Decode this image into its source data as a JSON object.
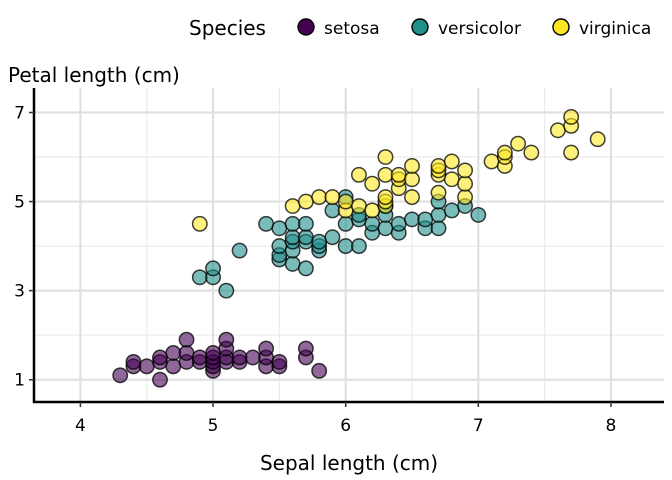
{
  "chart_data": {
    "type": "scatter",
    "xlabel": "Sepal length (cm)",
    "ylabel": "Petal length (cm)",
    "xlim": [
      3.65,
      8.4
    ],
    "ylim": [
      0.5,
      7.55
    ],
    "xticks": [
      4,
      5,
      6,
      7,
      8
    ],
    "yticks": [
      1,
      3,
      5,
      7
    ],
    "grid": true,
    "legend": {
      "title": "Species",
      "position": "top"
    },
    "series": [
      {
        "name": "setosa",
        "color": "#440154",
        "points": [
          [
            4.3,
            1.1
          ],
          [
            4.4,
            1.3
          ],
          [
            4.4,
            1.4
          ],
          [
            4.5,
            1.3
          ],
          [
            4.6,
            1.0
          ],
          [
            4.6,
            1.4
          ],
          [
            4.6,
            1.5
          ],
          [
            4.7,
            1.3
          ],
          [
            4.7,
            1.6
          ],
          [
            4.8,
            1.4
          ],
          [
            4.8,
            1.6
          ],
          [
            4.8,
            1.9
          ],
          [
            4.9,
            1.4
          ],
          [
            4.9,
            1.5
          ],
          [
            5.0,
            1.2
          ],
          [
            5.0,
            1.3
          ],
          [
            5.0,
            1.4
          ],
          [
            5.0,
            1.5
          ],
          [
            5.0,
            1.6
          ],
          [
            5.1,
            1.4
          ],
          [
            5.1,
            1.5
          ],
          [
            5.1,
            1.7
          ],
          [
            5.1,
            1.9
          ],
          [
            5.2,
            1.4
          ],
          [
            5.2,
            1.5
          ],
          [
            5.3,
            1.5
          ],
          [
            5.4,
            1.3
          ],
          [
            5.4,
            1.5
          ],
          [
            5.4,
            1.7
          ],
          [
            5.5,
            1.3
          ],
          [
            5.5,
            1.4
          ],
          [
            5.7,
            1.5
          ],
          [
            5.7,
            1.7
          ],
          [
            5.8,
            1.2
          ]
        ]
      },
      {
        "name": "versicolor",
        "color": "#21908C",
        "points": [
          [
            4.9,
            3.3
          ],
          [
            5.0,
            3.3
          ],
          [
            5.0,
            3.5
          ],
          [
            5.1,
            3.0
          ],
          [
            5.2,
            3.9
          ],
          [
            5.4,
            4.5
          ],
          [
            5.5,
            3.7
          ],
          [
            5.5,
            3.8
          ],
          [
            5.5,
            4.0
          ],
          [
            5.5,
            4.4
          ],
          [
            5.6,
            3.6
          ],
          [
            5.6,
            3.9
          ],
          [
            5.6,
            4.1
          ],
          [
            5.6,
            4.2
          ],
          [
            5.6,
            4.5
          ],
          [
            5.7,
            3.5
          ],
          [
            5.7,
            4.1
          ],
          [
            5.7,
            4.2
          ],
          [
            5.7,
            4.5
          ],
          [
            5.8,
            3.9
          ],
          [
            5.8,
            4.0
          ],
          [
            5.8,
            4.1
          ],
          [
            5.9,
            4.2
          ],
          [
            5.9,
            4.8
          ],
          [
            6.0,
            4.0
          ],
          [
            6.0,
            4.5
          ],
          [
            6.0,
            5.1
          ],
          [
            6.1,
            4.0
          ],
          [
            6.1,
            4.6
          ],
          [
            6.1,
            4.7
          ],
          [
            6.2,
            4.3
          ],
          [
            6.2,
            4.5
          ],
          [
            6.3,
            4.4
          ],
          [
            6.3,
            4.7
          ],
          [
            6.3,
            4.9
          ],
          [
            6.4,
            4.3
          ],
          [
            6.4,
            4.5
          ],
          [
            6.5,
            4.6
          ],
          [
            6.6,
            4.4
          ],
          [
            6.6,
            4.6
          ],
          [
            6.7,
            4.4
          ],
          [
            6.7,
            4.7
          ],
          [
            6.7,
            5.0
          ],
          [
            6.8,
            4.8
          ],
          [
            6.9,
            4.9
          ],
          [
            7.0,
            4.7
          ]
        ]
      },
      {
        "name": "virginica",
        "color": "#FDE725",
        "points": [
          [
            4.9,
            4.5
          ],
          [
            5.6,
            4.9
          ],
          [
            5.7,
            5.0
          ],
          [
            5.8,
            5.1
          ],
          [
            5.9,
            5.1
          ],
          [
            6.0,
            4.8
          ],
          [
            6.0,
            5.0
          ],
          [
            6.1,
            4.9
          ],
          [
            6.1,
            5.6
          ],
          [
            6.2,
            4.8
          ],
          [
            6.2,
            5.4
          ],
          [
            6.3,
            4.9
          ],
          [
            6.3,
            5.0
          ],
          [
            6.3,
            5.1
          ],
          [
            6.3,
            5.6
          ],
          [
            6.3,
            6.0
          ],
          [
            6.4,
            5.3
          ],
          [
            6.4,
            5.5
          ],
          [
            6.4,
            5.6
          ],
          [
            6.5,
            5.1
          ],
          [
            6.5,
            5.5
          ],
          [
            6.5,
            5.8
          ],
          [
            6.7,
            5.2
          ],
          [
            6.7,
            5.6
          ],
          [
            6.7,
            5.7
          ],
          [
            6.7,
            5.8
          ],
          [
            6.8,
            5.5
          ],
          [
            6.8,
            5.9
          ],
          [
            6.9,
            5.1
          ],
          [
            6.9,
            5.4
          ],
          [
            6.9,
            5.7
          ],
          [
            7.1,
            5.9
          ],
          [
            7.2,
            5.8
          ],
          [
            7.2,
            6.0
          ],
          [
            7.2,
            6.1
          ],
          [
            7.3,
            6.3
          ],
          [
            7.4,
            6.1
          ],
          [
            7.6,
            6.6
          ],
          [
            7.7,
            6.1
          ],
          [
            7.7,
            6.7
          ],
          [
            7.7,
            6.9
          ],
          [
            7.9,
            6.4
          ]
        ]
      }
    ]
  }
}
